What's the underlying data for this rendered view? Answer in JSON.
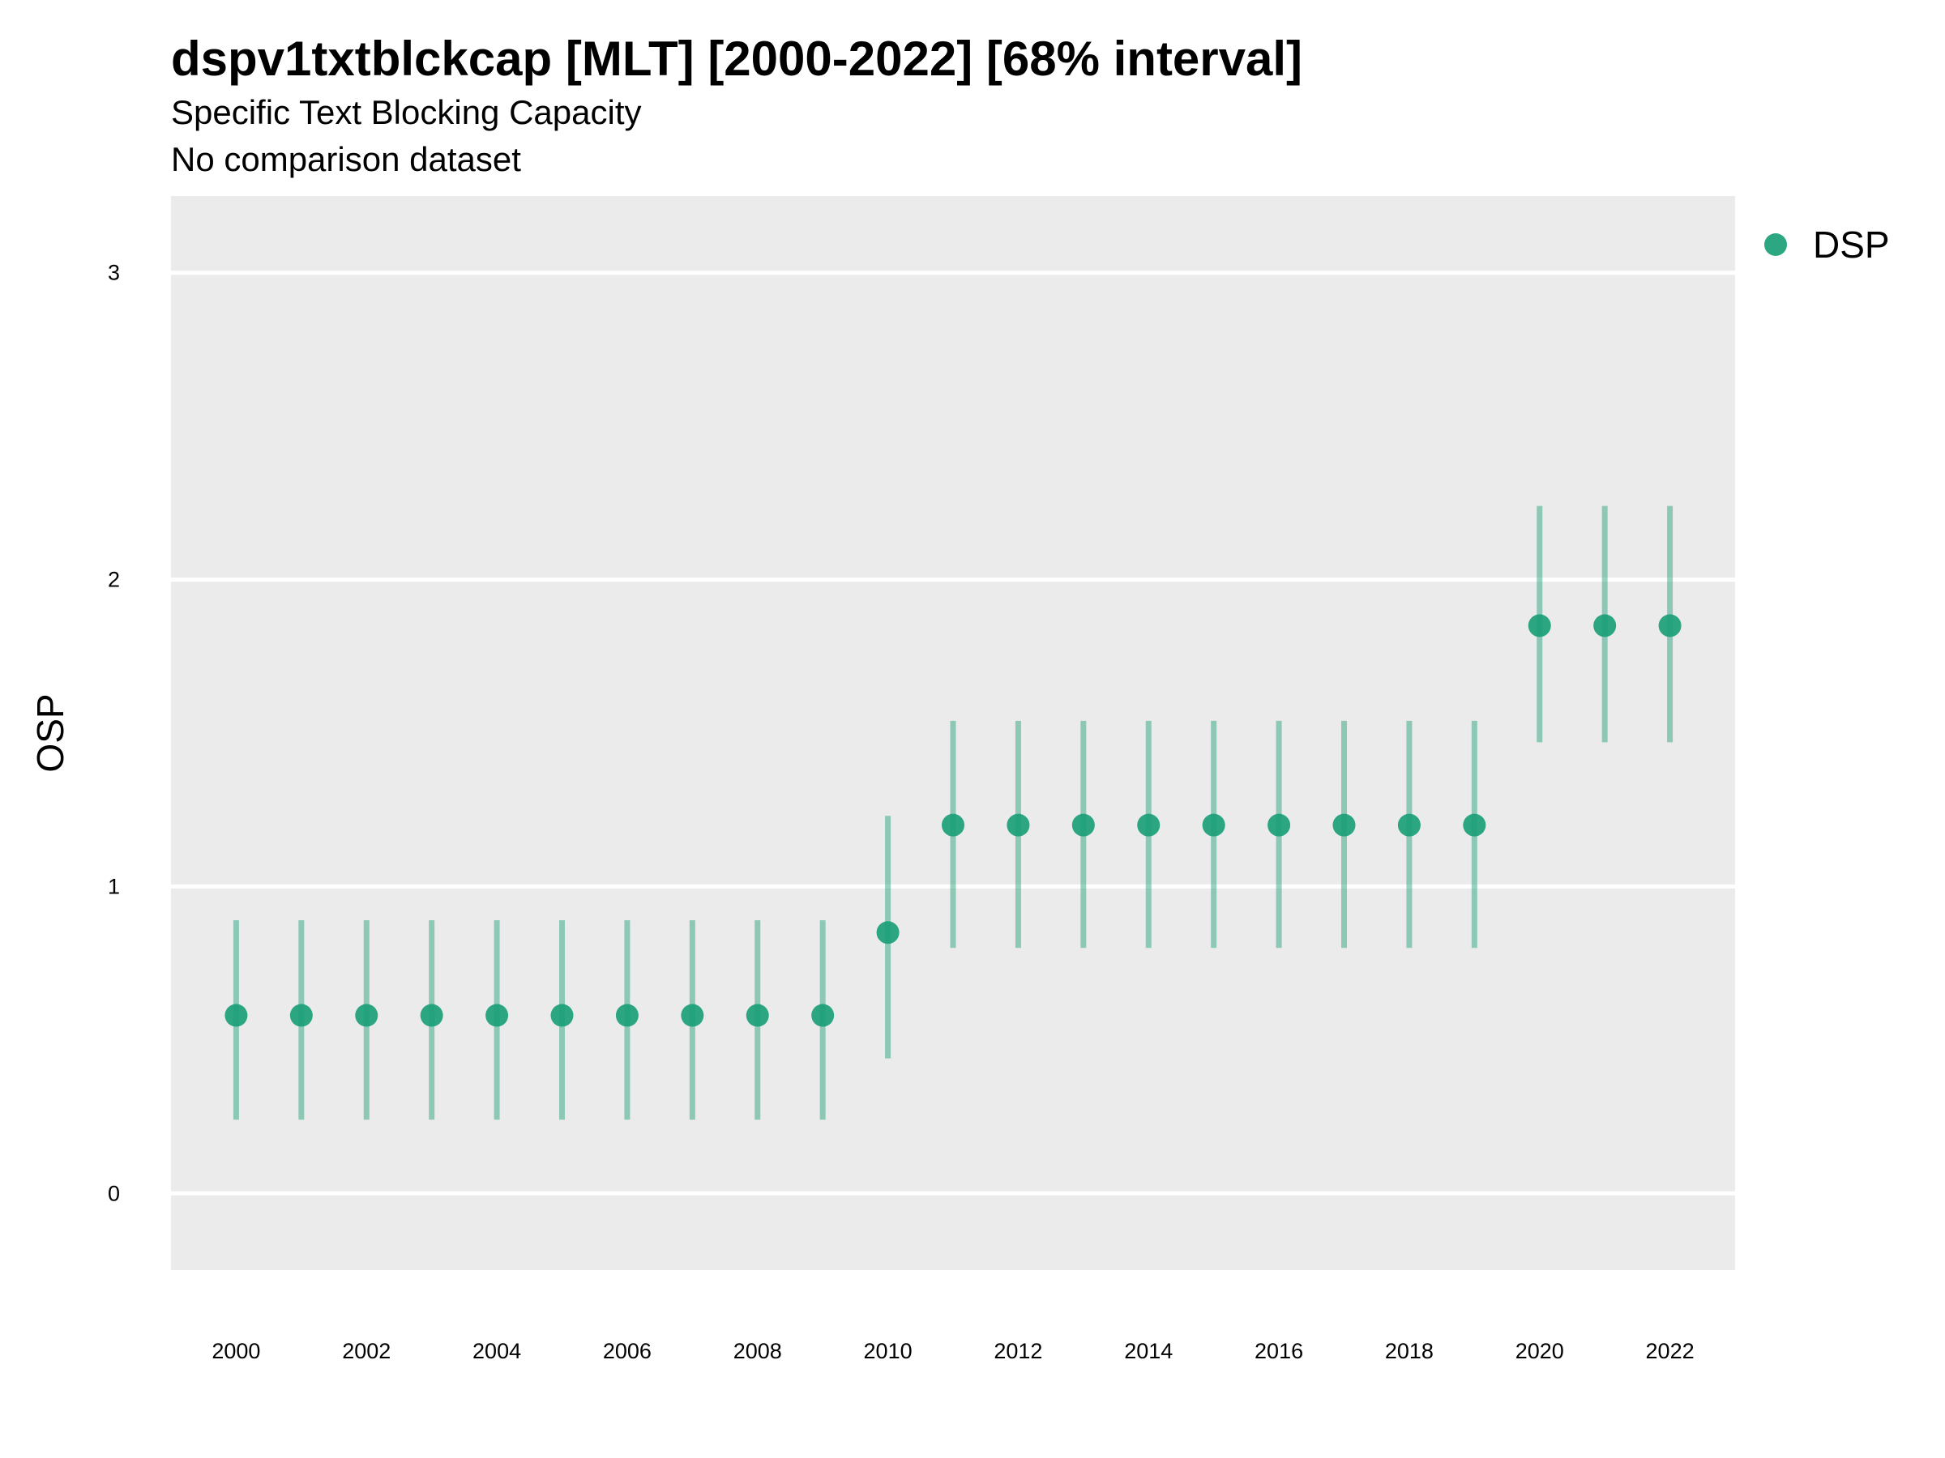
{
  "chart_data": {
    "type": "scatter",
    "title": "dspv1txtblckcap [MLT] [2000-2022] [68% interval]",
    "subtitle": "Specific Text Blocking Capacity",
    "caption": "No comparison dataset",
    "xlabel": "",
    "ylabel": "OSP",
    "xlim": [
      1999,
      2023
    ],
    "ylim": [
      -0.25,
      3.25
    ],
    "x_ticks": [
      "2000",
      "2002",
      "2004",
      "2006",
      "2008",
      "2010",
      "2012",
      "2014",
      "2016",
      "2018",
      "2020",
      "2022"
    ],
    "y_ticks": [
      "0",
      "1",
      "2",
      "3"
    ],
    "grid": true,
    "legend_position": "top-right",
    "series": [
      {
        "name": "DSP",
        "color": "#1b9e77",
        "x": [
          2000,
          2001,
          2002,
          2003,
          2004,
          2005,
          2006,
          2007,
          2008,
          2009,
          2010,
          2011,
          2012,
          2013,
          2014,
          2015,
          2016,
          2017,
          2018,
          2019,
          2020,
          2021,
          2022
        ],
        "y": [
          0.58,
          0.58,
          0.58,
          0.58,
          0.58,
          0.58,
          0.58,
          0.58,
          0.58,
          0.58,
          0.85,
          1.2,
          1.2,
          1.2,
          1.2,
          1.2,
          1.2,
          1.2,
          1.2,
          1.2,
          1.85,
          1.85,
          1.85
        ],
        "lower": [
          0.24,
          0.24,
          0.24,
          0.24,
          0.24,
          0.24,
          0.24,
          0.24,
          0.24,
          0.24,
          0.44,
          0.8,
          0.8,
          0.8,
          0.8,
          0.8,
          0.8,
          0.8,
          0.8,
          0.8,
          1.47,
          1.47,
          1.47
        ],
        "upper": [
          0.89,
          0.89,
          0.89,
          0.89,
          0.89,
          0.89,
          0.89,
          0.89,
          0.89,
          0.89,
          1.23,
          1.54,
          1.54,
          1.54,
          1.54,
          1.54,
          1.54,
          1.54,
          1.54,
          1.54,
          2.24,
          2.24,
          2.24
        ]
      }
    ]
  }
}
